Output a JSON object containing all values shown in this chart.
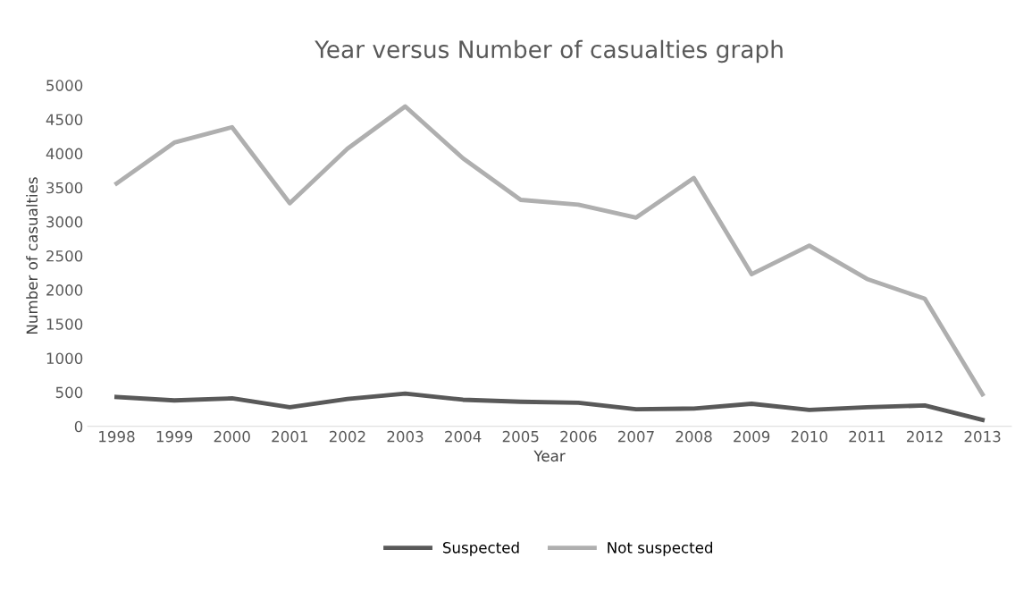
{
  "chart_data": {
    "type": "line",
    "title": "Year versus Number of casualties graph",
    "xlabel": "Year",
    "ylabel": "Number of casualties",
    "categories": [
      "1998",
      "1999",
      "2000",
      "2001",
      "2002",
      "2003",
      "2004",
      "2005",
      "2006",
      "2007",
      "2008",
      "2009",
      "2010",
      "2011",
      "2012",
      "2013"
    ],
    "series": [
      {
        "name": "Suspected",
        "color": "#595959",
        "values": [
          430,
          380,
          410,
          280,
          400,
          480,
          390,
          360,
          345,
          250,
          260,
          330,
          240,
          280,
          305,
          95
        ]
      },
      {
        "name": "Not suspected",
        "color": "#afafaf",
        "values": [
          3560,
          4160,
          4385,
          3270,
          4070,
          4690,
          3930,
          3320,
          3250,
          3060,
          3640,
          2230,
          2650,
          2160,
          1870,
          470
        ]
      }
    ],
    "ylim": [
      0,
      5000
    ],
    "yticks": [
      0,
      500,
      1000,
      1500,
      2000,
      2500,
      3000,
      3500,
      4000,
      4500,
      5000
    ],
    "grid": false,
    "legend": "bottom",
    "line_style": "solid",
    "marker": "none"
  }
}
